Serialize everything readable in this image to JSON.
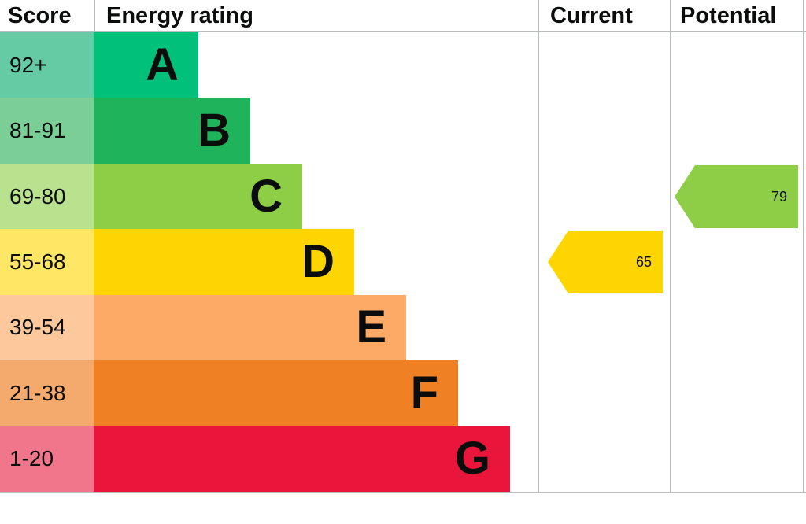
{
  "header": {
    "score": "Score",
    "energy_rating": "Energy rating",
    "current": "Current",
    "potential": "Potential"
  },
  "chart_data": {
    "type": "bar",
    "title": "Energy rating",
    "bands": [
      {
        "letter": "A",
        "range": "92+",
        "color": "#00c07a",
        "tint": "#65cba4"
      },
      {
        "letter": "B",
        "range": "81-91",
        "color": "#1fb45c",
        "tint": "#7ace96"
      },
      {
        "letter": "C",
        "range": "69-80",
        "color": "#8dce46",
        "tint": "#b8e28e"
      },
      {
        "letter": "D",
        "range": "55-68",
        "color": "#ffd500",
        "tint": "#ffe664"
      },
      {
        "letter": "E",
        "range": "39-54",
        "color": "#fcaa65",
        "tint": "#fdc89c"
      },
      {
        "letter": "F",
        "range": "21-38",
        "color": "#ef8023",
        "tint": "#f4aa6d"
      },
      {
        "letter": "G",
        "range": "1-20",
        "color": "#e9153b",
        "tint": "#f1768b"
      }
    ],
    "current": {
      "value": 65,
      "band": "D",
      "color": "#ffd500"
    },
    "potential": {
      "value": 79,
      "band": "C",
      "color": "#8dce46"
    }
  }
}
